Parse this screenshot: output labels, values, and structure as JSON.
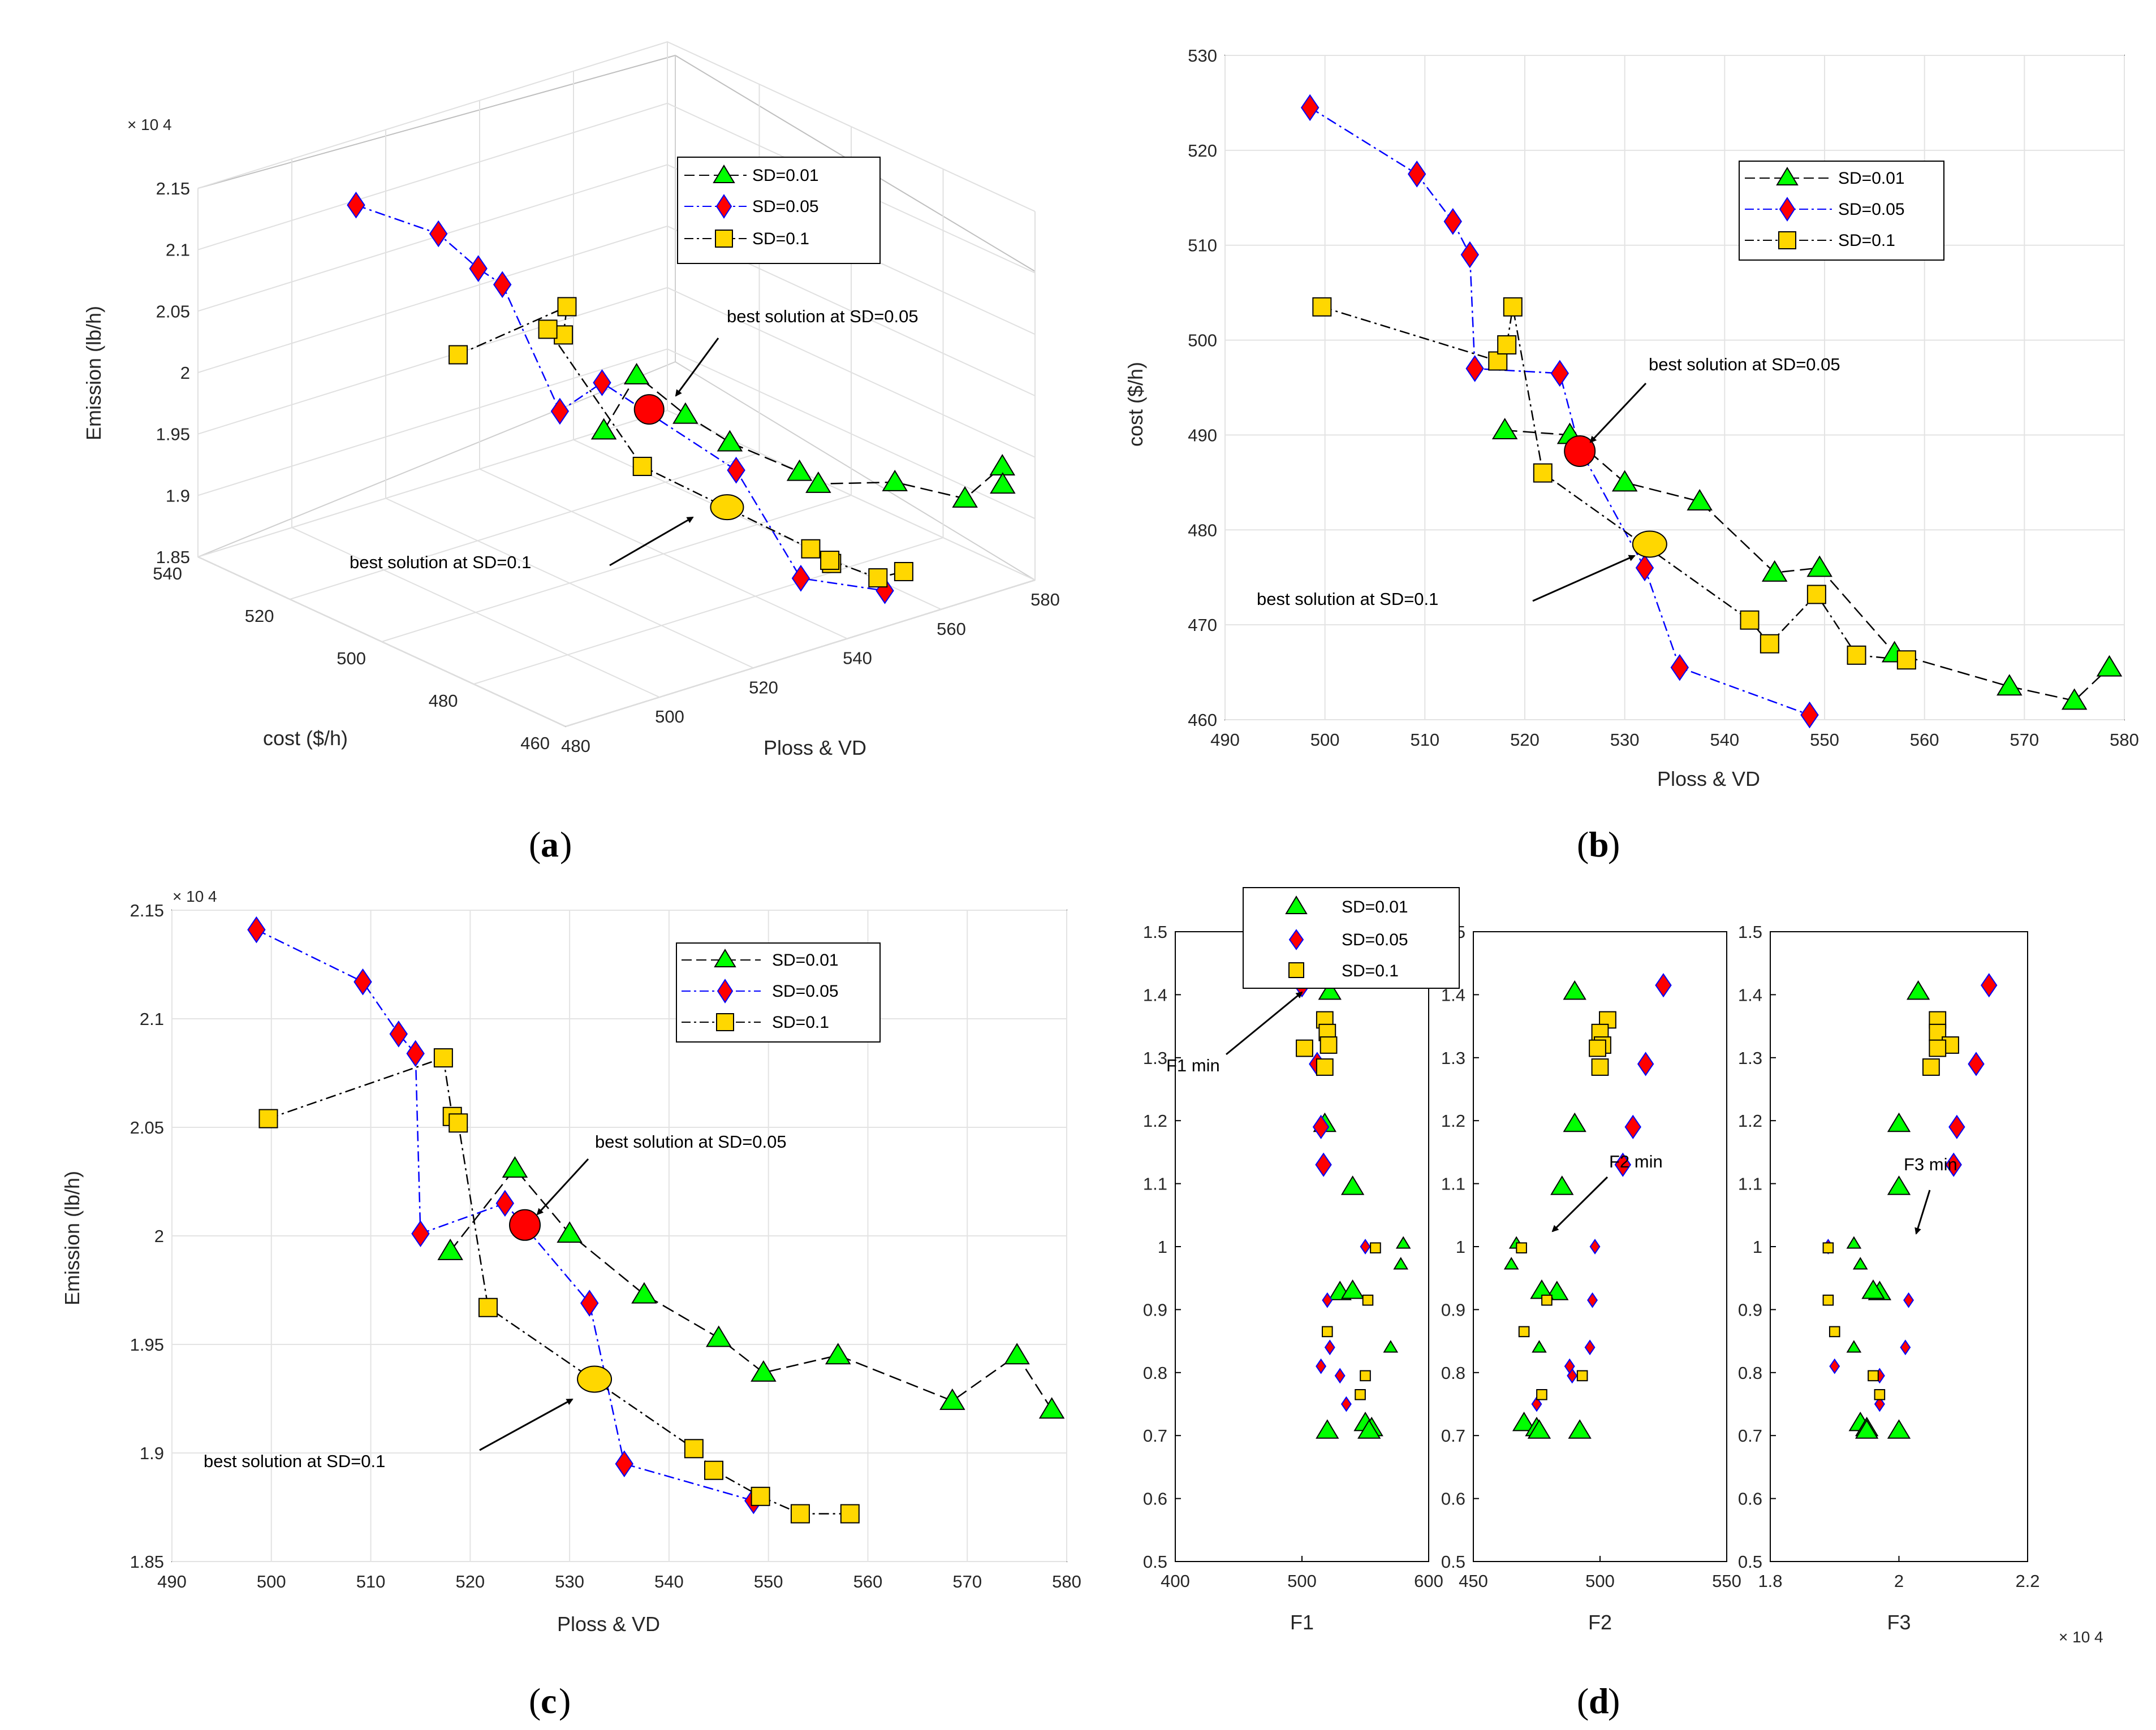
{
  "colors": {
    "sd001_fill": "#00ff00",
    "sd005_fill": "#ff0000",
    "sd005_edge": "#0000ff",
    "sd01_fill": "#ffd700",
    "sd005_line": "#0000ff",
    "best005": "#ff0000",
    "best01": "#ffd700"
  },
  "legend": {
    "sd001": "SD=0.01",
    "sd005": "SD=0.05",
    "sd01": "SD=0.1"
  },
  "panel_labels": {
    "a": "a",
    "b": "b",
    "c": "c",
    "d": "d"
  },
  "chart_data": [
    {
      "id": "a",
      "type": "scatter3d",
      "xlabel": "Ploss & VD",
      "ylabel": "cost ($/h)",
      "zlabel": "Emission (lb/h)",
      "z_exponent": "× 10 4",
      "xlim": [
        480,
        580
      ],
      "ylim": [
        460,
        540
      ],
      "zlim": [
        1.85,
        2.15
      ],
      "xticks": [
        480,
        500,
        520,
        540,
        560,
        580
      ],
      "xtick_labels": [
        "480",
        "500",
        "520",
        "540",
        "560",
        "580"
      ],
      "yticks": [
        460,
        480,
        500,
        520,
        540
      ],
      "ytick_labels": [
        "460",
        "480",
        "500",
        "520",
        "540"
      ],
      "zticks": [
        1.85,
        1.9,
        1.95,
        2,
        2.05,
        2.1,
        2.15
      ],
      "ztick_labels": [
        "1.85",
        "1.9",
        "1.95",
        "2",
        "2.05",
        "2.1",
        "2.15"
      ],
      "annotations": [
        "best solution at SD=0.05",
        "best solution at SD=0.1"
      ]
    },
    {
      "id": "b",
      "type": "line",
      "xlabel": "Ploss & VD",
      "ylabel": "cost ($/h)",
      "xlim": [
        490,
        580
      ],
      "ylim": [
        460,
        530
      ],
      "xticks": [
        490,
        500,
        510,
        520,
        530,
        540,
        550,
        560,
        570,
        580
      ],
      "xtick_labels": [
        "490",
        "500",
        "510",
        "520",
        "530",
        "540",
        "550",
        "560",
        "570",
        "580"
      ],
      "yticks": [
        460,
        470,
        480,
        490,
        500,
        510,
        520,
        530
      ],
      "ytick_labels": [
        "460",
        "470",
        "480",
        "490",
        "500",
        "510",
        "520",
        "530"
      ],
      "series": [
        {
          "name": "SD=0.01",
          "marker": "triangle",
          "x": [
            518,
            524.5,
            530,
            537.5,
            545,
            549.5,
            557,
            568.5,
            575,
            578.5
          ],
          "y": [
            490.5,
            490,
            485,
            483,
            475.5,
            476,
            467,
            463.5,
            462,
            465.5
          ]
        },
        {
          "name": "SD=0.05",
          "marker": "diamond",
          "x": [
            498.5,
            509.2,
            512.8,
            514.5,
            515,
            523.5,
            525.5,
            532,
            535.5,
            548.5
          ],
          "y": [
            524.5,
            517.5,
            512.5,
            509,
            497,
            496.5,
            488.5,
            476,
            465.5,
            460.5
          ]
        },
        {
          "name": "SD=0.1",
          "marker": "square",
          "x": [
            499.7,
            517.3,
            518.2,
            518.8,
            521.8,
            542.5,
            544.5,
            549.2,
            553.2,
            558.2
          ],
          "y": [
            503.5,
            497.8,
            499.5,
            503.5,
            486,
            470.5,
            468,
            473.2,
            466.8,
            466.3
          ]
        }
      ],
      "best": [
        {
          "x": 525.5,
          "y": 488.3,
          "color": "red"
        },
        {
          "x": 532.5,
          "y": 478.5,
          "color": "yellow"
        }
      ],
      "annotations": [
        "best solution at SD=0.05",
        "best solution at SD=0.1"
      ]
    },
    {
      "id": "c",
      "type": "line",
      "xlabel": "Ploss & VD",
      "ylabel": "Emission (lb/h)",
      "y_exponent": "× 10 4",
      "xlim": [
        490,
        580
      ],
      "ylim": [
        1.85,
        2.15
      ],
      "xticks": [
        490,
        500,
        510,
        520,
        530,
        540,
        550,
        560,
        570,
        580
      ],
      "xtick_labels": [
        "490",
        "500",
        "510",
        "520",
        "530",
        "540",
        "550",
        "560",
        "570",
        "580"
      ],
      "yticks": [
        1.85,
        1.9,
        1.95,
        2,
        2.05,
        2.1,
        2.15
      ],
      "ytick_labels": [
        "1.85",
        "1.9",
        "1.95",
        "2",
        "2.05",
        "2.1",
        "2.15"
      ],
      "series": [
        {
          "name": "SD=0.01",
          "marker": "triangle",
          "x": [
            518,
            524.5,
            530,
            537.5,
            545,
            549.5,
            557,
            568.5,
            575,
            578.5
          ],
          "y": [
            1.993,
            2.031,
            2.001,
            1.973,
            1.953,
            1.937,
            1.945,
            1.924,
            1.945,
            1.92
          ]
        },
        {
          "name": "SD=0.05",
          "marker": "diamond",
          "x": [
            498.5,
            509.2,
            512.8,
            514.5,
            515,
            523.5,
            532,
            535.5,
            548.5
          ],
          "y": [
            2.141,
            2.117,
            2.093,
            2.084,
            2.001,
            2.015,
            1.969,
            1.895,
            1.878
          ]
        },
        {
          "name": "SD=0.1",
          "marker": "square",
          "x": [
            499.7,
            517.3,
            518.2,
            518.8,
            521.8,
            542.5,
            544.5,
            549.2,
            553.2,
            558.2
          ],
          "y": [
            2.054,
            2.082,
            2.055,
            2.052,
            1.967,
            1.902,
            1.892,
            1.88,
            1.872,
            1.872
          ]
        }
      ],
      "best": [
        {
          "x": 525.5,
          "y": 2.005,
          "color": "red"
        },
        {
          "x": 532.5,
          "y": 1.934,
          "color": "yellow"
        }
      ],
      "annotations": [
        "best solution at SD=0.05",
        "best solution at SD=0.1"
      ]
    },
    {
      "id": "d",
      "type": "scatter",
      "ylim": [
        0.5,
        1.5
      ],
      "yticks": [
        0.5,
        0.6,
        0.7,
        0.8,
        0.9,
        1,
        1.1,
        1.2,
        1.3,
        1.4,
        1.5
      ],
      "ytick_labels": [
        "0.5",
        "0.6",
        "0.7",
        "0.8",
        "0.9",
        "1",
        "1.1",
        "1.2",
        "1.3",
        "1.4",
        "1.5"
      ],
      "subplots": [
        {
          "xlabel": "F1",
          "xlim": [
            400,
            600
          ],
          "xticks": [
            400,
            500,
            600
          ],
          "xtick_labels": [
            "400",
            "500",
            "600"
          ],
          "annotation": "F1 min"
        },
        {
          "xlabel": "F2",
          "xlim": [
            450,
            550
          ],
          "xticks": [
            450,
            500,
            550
          ],
          "xtick_labels": [
            "450",
            "500",
            "550"
          ],
          "annotation": "F2 min"
        },
        {
          "xlabel": "F3",
          "xlim": [
            1.8,
            2.2
          ],
          "xticks": [
            1.8,
            2,
            2.2
          ],
          "xtick_labels": [
            "1.8",
            "2",
            "2.2"
          ],
          "x_exponent": "× 10 4",
          "annotation": "F3 min"
        }
      ],
      "series": [
        {
          "name": "SD=0.01",
          "marker": "triangle",
          "F1": [
            522,
            518,
            540,
            530,
            580,
            578,
            540,
            570,
            550,
            555,
            553,
            520
          ],
          "F2": [
            490,
            490,
            485,
            483,
            467,
            465,
            477,
            476,
            470,
            475,
            476,
            492
          ],
          "F3": [
            2.03,
            2.0,
            2.0,
            1.97,
            1.93,
            1.94,
            1.96,
            1.93,
            1.94,
            1.95,
            1.95,
            2.0
          ],
          "y": [
            1.405,
            1.195,
            1.095,
            0.928,
            1.005,
            0.972,
            0.93,
            0.84,
            0.72,
            0.712,
            0.708,
            0.708
          ]
        },
        {
          "name": "SD=0.05",
          "marker": "diamond",
          "F1": [
            500,
            512,
            515,
            517,
            550,
            520,
            522,
            530,
            515,
            535
          ],
          "F2": [
            525,
            518,
            513,
            509,
            498,
            497,
            496,
            489,
            488,
            475
          ],
          "F3": [
            2.14,
            2.12,
            2.09,
            2.085,
            1.89,
            2.015,
            2.01,
            1.97,
            1.9,
            1.97
          ],
          "y": [
            1.415,
            1.29,
            1.19,
            1.13,
            1.0,
            0.915,
            0.84,
            0.795,
            0.81,
            0.75
          ]
        },
        {
          "name": "SD=0.1",
          "marker": "square",
          "F1": [
            518,
            520,
            521,
            502,
            518,
            558,
            552,
            520,
            550,
            546
          ],
          "F2": [
            503,
            500,
            501,
            499,
            500,
            469,
            479,
            470,
            493,
            477
          ],
          "F3": [
            2.06,
            2.06,
            2.08,
            2.06,
            2.05,
            1.89,
            1.89,
            1.9,
            1.96,
            1.97
          ],
          "y": [
            1.36,
            1.34,
            1.32,
            1.315,
            1.285,
            0.998,
            0.915,
            0.865,
            0.795,
            0.765
          ]
        }
      ],
      "annotations": [
        "F1 min",
        "F2 min",
        "F3 min"
      ]
    }
  ]
}
